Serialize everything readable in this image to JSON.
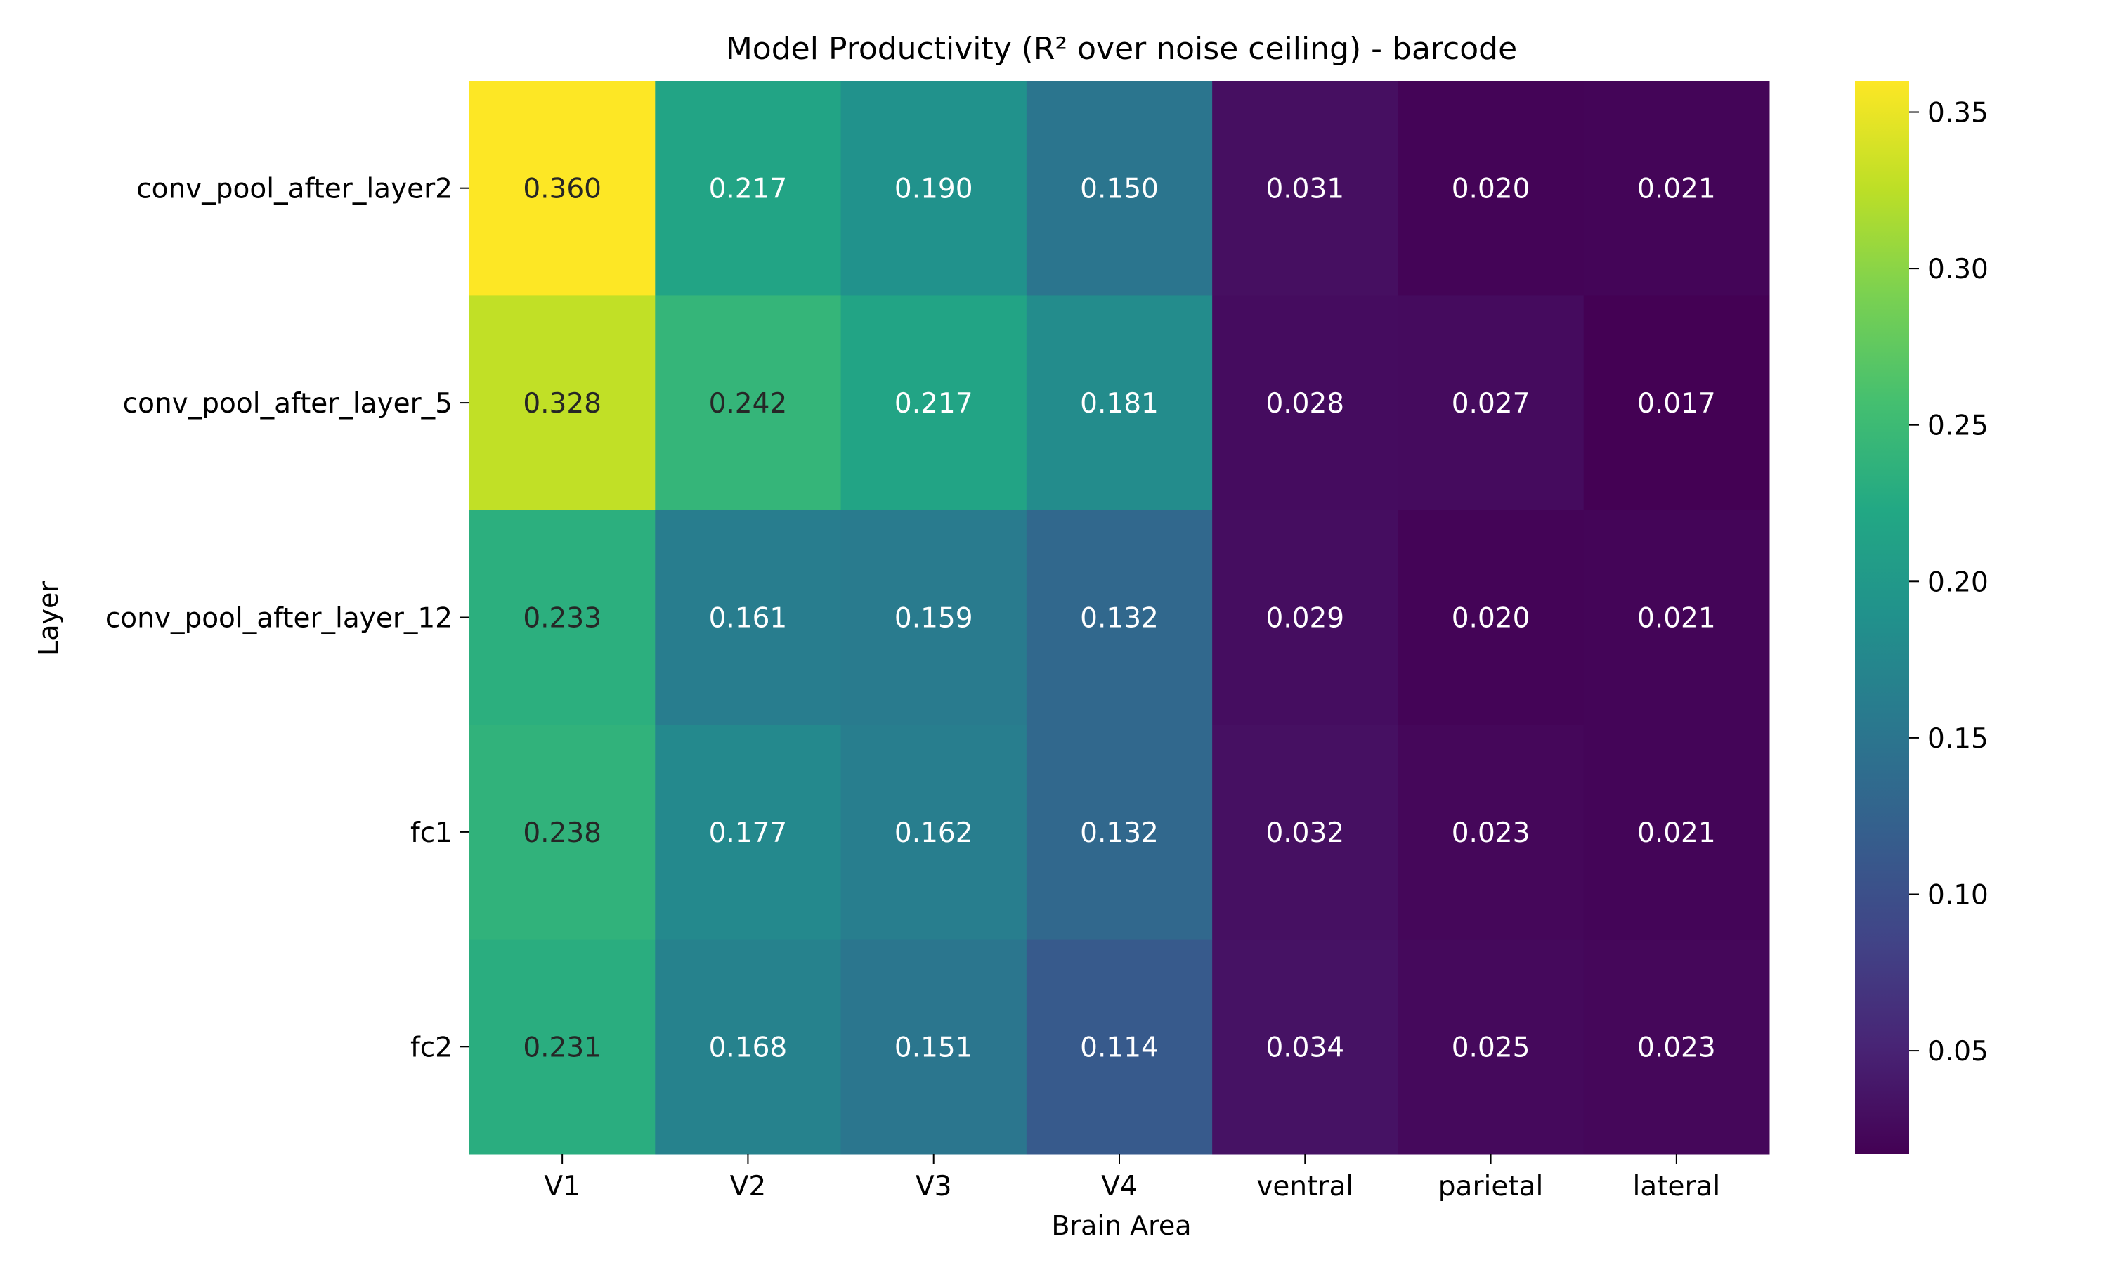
{
  "chart_data": {
    "type": "heatmap",
    "title": "Model Productivity (R² over noise ceiling) - barcode",
    "xlabel": "Brain Area",
    "ylabel": "Layer",
    "x_categories": [
      "V1",
      "V2",
      "V3",
      "V4",
      "ventral",
      "parietal",
      "lateral"
    ],
    "y_categories": [
      "conv_pool_after_layer2",
      "conv_pool_after_layer_5",
      "conv_pool_after_layer_12",
      "fc1",
      "fc2"
    ],
    "values": [
      [
        0.36,
        0.217,
        0.19,
        0.15,
        0.031,
        0.02,
        0.021
      ],
      [
        0.328,
        0.242,
        0.217,
        0.181,
        0.028,
        0.027,
        0.017
      ],
      [
        0.233,
        0.161,
        0.159,
        0.132,
        0.029,
        0.02,
        0.021
      ],
      [
        0.238,
        0.177,
        0.162,
        0.132,
        0.032,
        0.023,
        0.021
      ],
      [
        0.231,
        0.168,
        0.151,
        0.114,
        0.034,
        0.025,
        0.023
      ]
    ],
    "colormap": "viridis",
    "color_range": [
      0.017,
      0.36
    ],
    "colorbar_ticks": [
      "0.05",
      "0.10",
      "0.15",
      "0.20",
      "0.25",
      "0.30",
      "0.35"
    ],
    "annotation_format": "0.000"
  }
}
